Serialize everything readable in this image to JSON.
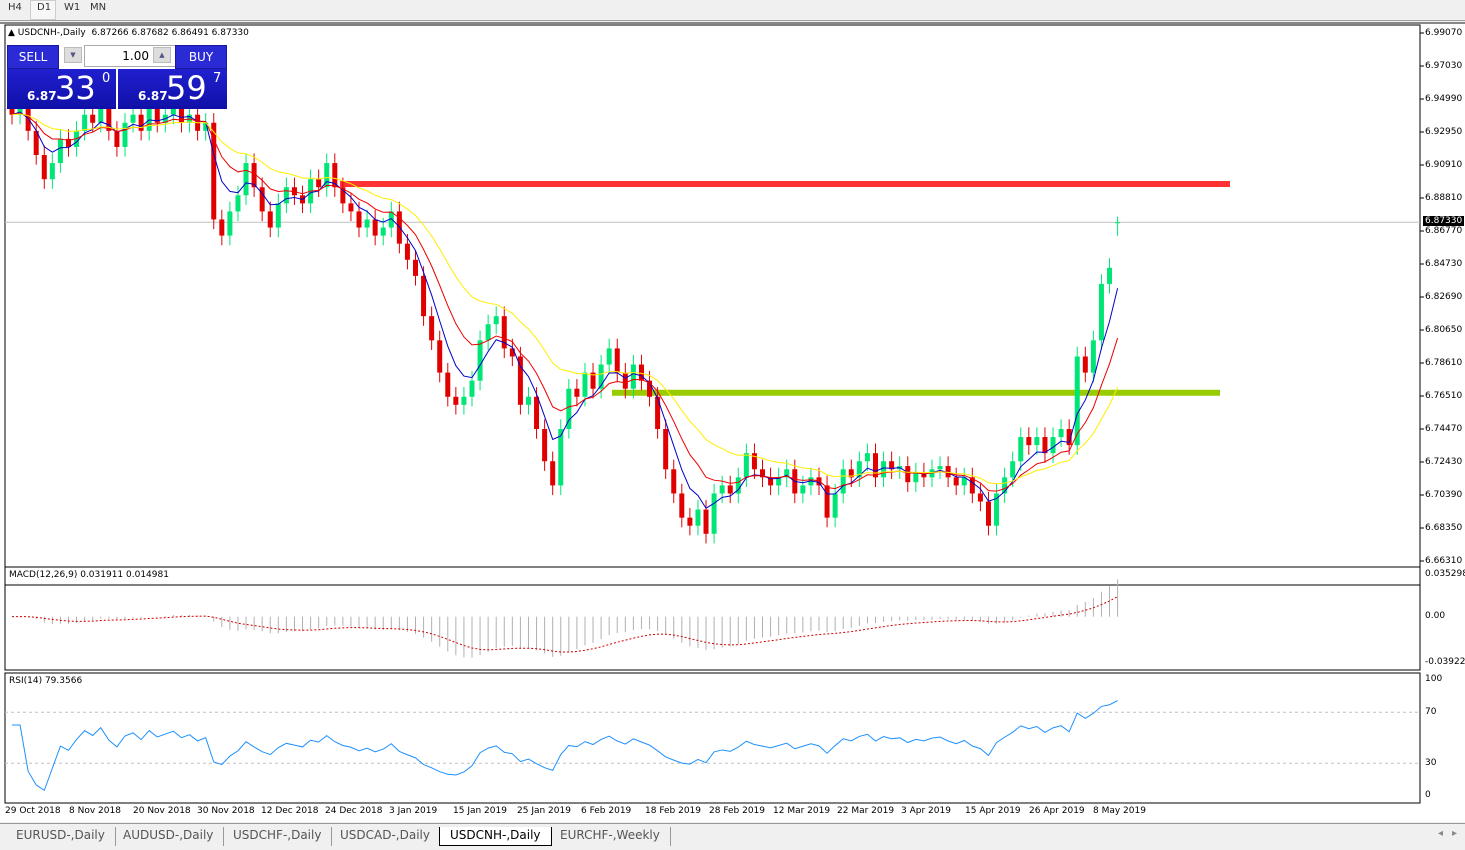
{
  "timeframes": [
    "H4",
    "D1",
    "W1",
    "MN"
  ],
  "selected_timeframe": "D1",
  "header": {
    "symbol": "USDCNH-,Daily",
    "ohlc": "6.87266 6.87682 6.86491 6.87330"
  },
  "trade_panel": {
    "sell_label": "SELL",
    "buy_label": "BUY",
    "lot": "1.00",
    "sell_prefix": "6.87",
    "sell_big": "33",
    "sell_sup": "0",
    "buy_prefix": "6.87",
    "buy_big": "59",
    "buy_sup": "7"
  },
  "price_axis": [
    "6.99070",
    "6.97030",
    "6.94990",
    "6.92950",
    "6.90910",
    "6.88810",
    "6.86770",
    "6.84730",
    "6.82690",
    "6.80650",
    "6.78610",
    "6.76510",
    "6.74470",
    "6.72430",
    "6.70390",
    "6.68350",
    "6.66310"
  ],
  "current_price": "6.87330",
  "price_range": [
    6.6631,
    6.9907
  ],
  "levels": [
    {
      "price": 6.897,
      "color": "#ff3333"
    },
    {
      "price": 6.7675,
      "color": "#99cc00"
    }
  ],
  "colors": {
    "bull": "#00e676",
    "bear": "#e00000",
    "ma_fast": "#0000cc",
    "ma_mid": "#ee0000",
    "ma_slow": "#ffee00",
    "rsi": "#1e90ff",
    "macd_hist": "#b0b0b0",
    "macd_signal": "#cc0000"
  },
  "closes": [
    6.94,
    6.945,
    6.93,
    6.915,
    6.9,
    6.91,
    6.925,
    6.92,
    6.93,
    6.94,
    6.935,
    6.945,
    6.93,
    6.92,
    6.935,
    6.94,
    6.93,
    6.945,
    6.935,
    6.94,
    6.945,
    6.935,
    6.94,
    6.93,
    6.935,
    6.875,
    6.865,
    6.88,
    6.89,
    6.91,
    6.895,
    6.88,
    6.87,
    6.885,
    6.895,
    6.89,
    6.885,
    6.9,
    6.895,
    6.91,
    6.895,
    6.885,
    6.88,
    6.87,
    6.875,
    6.865,
    6.87,
    6.88,
    6.86,
    6.85,
    6.84,
    6.815,
    6.8,
    6.78,
    6.765,
    6.76,
    6.765,
    6.775,
    6.8,
    6.81,
    6.815,
    6.795,
    6.79,
    6.76,
    6.765,
    6.745,
    6.725,
    6.71,
    6.745,
    6.77,
    6.765,
    6.78,
    6.77,
    6.785,
    6.795,
    6.78,
    6.77,
    6.785,
    6.775,
    6.765,
    6.745,
    6.72,
    6.705,
    6.69,
    6.685,
    6.695,
    6.68,
    6.705,
    6.71,
    6.705,
    6.715,
    6.73,
    6.72,
    6.715,
    6.71,
    6.715,
    6.72,
    6.705,
    6.71,
    6.715,
    6.71,
    6.69,
    6.705,
    6.72,
    6.715,
    6.725,
    6.73,
    6.715,
    6.725,
    6.72,
    6.722,
    6.712,
    6.718,
    6.715,
    6.72,
    6.722,
    6.715,
    6.71,
    6.715,
    6.705,
    6.7,
    6.685,
    6.705,
    6.715,
    6.725,
    6.74,
    6.735,
    6.74,
    6.73,
    6.74,
    6.745,
    6.735,
    6.79,
    6.78,
    6.8,
    6.835,
    6.845,
    6.8733
  ],
  "macd": {
    "label": "MACD(12,26,9) 0.031911 0.014981",
    "axis": [
      "0.035298",
      "0.00",
      "-0.039223"
    ],
    "range": [
      -0.039223,
      0.035298
    ]
  },
  "rsi": {
    "label": "RSI(14) 79.3566",
    "axis": [
      "100",
      "70",
      "30",
      "0"
    ],
    "levels": [
      70,
      30
    ]
  },
  "dates": [
    "29 Oct 2018",
    "8 Nov 2018",
    "20 Nov 2018",
    "30 Nov 2018",
    "12 Dec 2018",
    "24 Dec 2018",
    "3 Jan 2019",
    "15 Jan 2019",
    "25 Jan 2019",
    "6 Feb 2019",
    "18 Feb 2019",
    "28 Feb 2019",
    "12 Mar 2019",
    "22 Mar 2019",
    "3 Apr 2019",
    "15 Apr 2019",
    "26 Apr 2019",
    "8 May 2019"
  ],
  "tabs": [
    "EURUSD-,Daily",
    "AUDUSD-,Daily",
    "USDCHF-,Daily",
    "USDCAD-,Daily",
    "USDCNH-,Daily",
    "EURCHF-,Weekly"
  ],
  "active_tab": "USDCNH-,Daily"
}
